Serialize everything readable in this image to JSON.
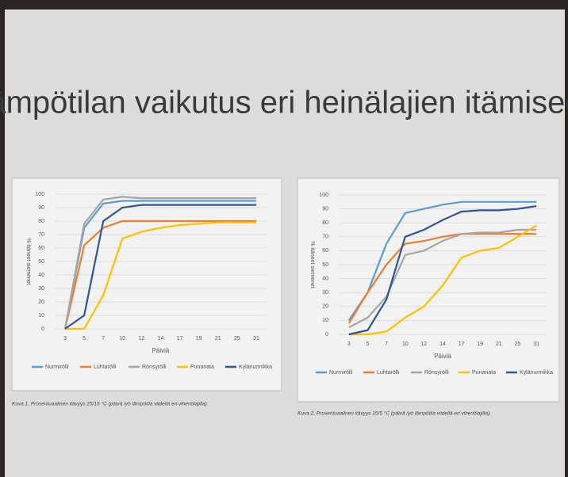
{
  "slide_title": "Lämpötilan vaikutus eri heinälajien itämiseen",
  "chart_data": [
    {
      "type": "line",
      "caption": "Kuva 1. Prosentuaalinen itävyys 25/15 °C (päivä /yö lämpötila viidellä eri viheriölajilla).",
      "x_label": "Päiviä",
      "y_label": "% itäneet siemenet",
      "categories": [
        "3",
        "5",
        "7",
        "10",
        "12",
        "14",
        "17",
        "19",
        "21",
        "25",
        "31"
      ],
      "ylim": [
        0,
        100
      ],
      "yticks": [
        0,
        10,
        20,
        30,
        40,
        50,
        60,
        70,
        80,
        90,
        100
      ],
      "grid": true,
      "legend": "bottom",
      "series": [
        {
          "name": "Nurmirölli",
          "color": "#5b9bd5",
          "values": [
            0,
            75,
            93,
            95,
            95,
            95,
            95,
            95,
            95,
            95,
            95
          ]
        },
        {
          "name": "Luhtarölli",
          "color": "#ed7d31",
          "values": [
            0,
            62,
            75,
            80,
            80,
            80,
            80,
            80,
            80,
            80,
            80
          ]
        },
        {
          "name": "Rönsyrölli",
          "color": "#a5a5a5",
          "values": [
            0,
            78,
            96,
            98,
            97,
            97,
            97,
            97,
            97,
            97,
            97
          ]
        },
        {
          "name": "Punanata",
          "color": "#ffc000",
          "values": [
            0,
            0,
            25,
            67,
            72,
            75,
            77,
            78,
            79,
            79,
            79
          ]
        },
        {
          "name": "Kylänurmikka",
          "color": "#2e5597",
          "values": [
            0,
            10,
            80,
            90,
            92,
            92,
            92,
            92,
            92,
            92,
            92
          ]
        }
      ]
    },
    {
      "type": "line",
      "caption": "Kuva 2. Prosentuaalinen itävyys 15/5 °C (päivä /yö lämpötila viidellä eri viheriölajilla).",
      "x_label": "Päiviä",
      "y_label": "% itäneet siemenet",
      "categories": [
        "3",
        "5",
        "7",
        "10",
        "12",
        "14",
        "17",
        "19",
        "21",
        "25",
        "31"
      ],
      "ylim": [
        0,
        100
      ],
      "yticks": [
        0,
        10,
        20,
        30,
        40,
        50,
        60,
        70,
        80,
        90,
        100
      ],
      "grid": true,
      "legend": "bottom",
      "series": [
        {
          "name": "Nurmirölli",
          "color": "#5b9bd5",
          "values": [
            10,
            30,
            65,
            87,
            90,
            93,
            95,
            95,
            95,
            95,
            95
          ]
        },
        {
          "name": "Luhtarölli",
          "color": "#ed7d31",
          "values": [
            8,
            30,
            50,
            65,
            67,
            70,
            72,
            72,
            72,
            72,
            72
          ]
        },
        {
          "name": "Rönsyrölli",
          "color": "#a5a5a5",
          "values": [
            5,
            12,
            27,
            57,
            60,
            67,
            72,
            73,
            73,
            75,
            75
          ]
        },
        {
          "name": "Punanata",
          "color": "#ffc000",
          "values": [
            0,
            0,
            2,
            12,
            20,
            35,
            55,
            60,
            62,
            70,
            78
          ]
        },
        {
          "name": "Kylänurmikka",
          "color": "#2e5597",
          "values": [
            0,
            3,
            25,
            70,
            75,
            82,
            88,
            89,
            89,
            90,
            92
          ]
        }
      ]
    }
  ]
}
